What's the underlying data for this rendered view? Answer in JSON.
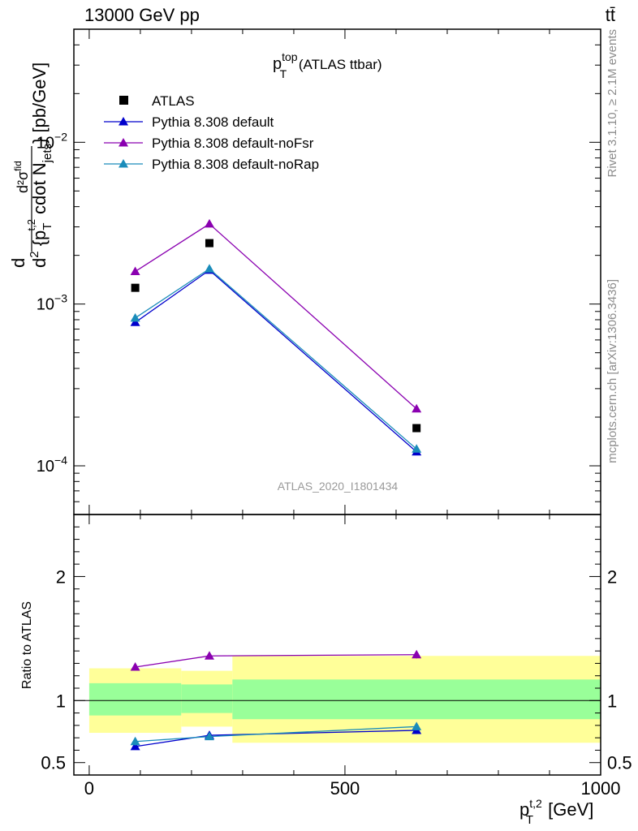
{
  "header": {
    "energy": "13000 GeV pp",
    "process": "tt̄"
  },
  "side_labels": {
    "rivet": "Rivet 3.1.10, ≥ 2.1M events",
    "mcplots": "mcplots.cern.ch [arXiv:1306.3436]"
  },
  "chart_data": [
    {
      "type": "scatter",
      "panel": "main",
      "title": "p_T^top (ATLAS ttbar)",
      "title_parts": {
        "main": "p",
        "sup": "top",
        "sub": "T",
        "rest": "(ATLAS ttbar)"
      },
      "analysis_tag": "ATLAS_2020_I1801434",
      "ylabel": "d d²σ^fid / d² {p_T^{t,2} cdot N_jets} [pb/GeV]",
      "ylabel_parts": {
        "numerator": "d",
        "inner_numerator": "d²σ",
        "inner_numerator_sup": "fid",
        "denominator": "d",
        "denominator_sup": "2",
        "denominator_text": "{p",
        "denominator_sub": "T",
        "denominator_sup2": "t,2",
        "denominator_text2": "cdot N",
        "denominator_sub2": "jets",
        "closing": "} [pb/GeV]"
      },
      "yscale": "log",
      "ylim": [
        5e-05,
        0.05
      ],
      "xlim": [
        -30,
        1000
      ],
      "y_ticks": [
        {
          "value": 0.0001,
          "base": "10",
          "exp": "−4"
        },
        {
          "value": 0.001,
          "base": "10",
          "exp": "−3"
        },
        {
          "value": 0.01,
          "base": "10",
          "exp": "−2"
        }
      ],
      "legend_position": "top-left",
      "series": [
        {
          "name": "ATLAS",
          "color": "#000000",
          "marker": "square",
          "line": false,
          "x": [
            90,
            235,
            640
          ],
          "y": [
            0.00126,
            0.00238,
            0.000171
          ]
        },
        {
          "name": "Pythia 8.308 default",
          "color": "#0000cc",
          "marker": "triangle",
          "line": true,
          "x": [
            90,
            235,
            640
          ],
          "y": [
            0.00077,
            0.00162,
            0.000122
          ]
        },
        {
          "name": "Pythia 8.308 default-noFsr",
          "color": "#8a00b0",
          "marker": "triangle",
          "line": true,
          "x": [
            90,
            235,
            640
          ],
          "y": [
            0.00159,
            0.00313,
            0.000225
          ]
        },
        {
          "name": "Pythia 8.308 default-noRap",
          "color": "#1a8cba",
          "marker": "triangle",
          "line": true,
          "x": [
            90,
            235,
            640
          ],
          "y": [
            0.00082,
            0.00165,
            0.000127
          ]
        }
      ]
    },
    {
      "type": "line",
      "panel": "ratio",
      "ylabel": "Ratio to ATLAS",
      "xlabel": "p_T^{t,2} [GeV]",
      "xlabel_parts": {
        "main": "p",
        "sub": "T",
        "sup": "t,2",
        "rest": "[GeV]"
      },
      "ylim": [
        0.4,
        2.5
      ],
      "xlim": [
        -30,
        1000
      ],
      "x_ticks": [
        {
          "value": 0,
          "label": "0"
        },
        {
          "value": 500,
          "label": "500"
        },
        {
          "value": 1000,
          "label": "1000"
        }
      ],
      "y_ticks": [
        {
          "value": 0.5,
          "label": "0.5"
        },
        {
          "value": 1,
          "label": "1"
        },
        {
          "value": 2,
          "label": "2"
        }
      ],
      "uncertainty_bands": [
        {
          "x_low": 0,
          "x_high": 180,
          "stat_low": 0.88,
          "stat_high": 1.14,
          "total_low": 0.74,
          "total_high": 1.26
        },
        {
          "x_low": 180,
          "x_high": 280,
          "stat_low": 0.9,
          "stat_high": 1.13,
          "total_low": 0.79,
          "total_high": 1.24
        },
        {
          "x_low": 280,
          "x_high": 1000,
          "stat_low": 0.85,
          "stat_high": 1.17,
          "total_low": 0.66,
          "total_high": 1.36
        }
      ],
      "band_colors": {
        "total": "#ffff99",
        "stat": "#99ff99"
      },
      "series": [
        {
          "name": "Pythia 8.308 default",
          "color": "#0000cc",
          "x": [
            90,
            235,
            640
          ],
          "y": [
            0.63,
            0.72,
            0.76
          ],
          "err": [
            0.02,
            0.03,
            0.03
          ]
        },
        {
          "name": "Pythia 8.308 default-noFsr",
          "color": "#8a00b0",
          "x": [
            90,
            235,
            640
          ],
          "y": [
            1.27,
            1.36,
            1.37
          ],
          "err": [
            0.02,
            0.02,
            0.03
          ]
        },
        {
          "name": "Pythia 8.308 default-noRap",
          "color": "#1a8cba",
          "x": [
            90,
            235,
            640
          ],
          "y": [
            0.67,
            0.71,
            0.79
          ],
          "err": [
            0.03,
            0.02,
            0.03
          ]
        }
      ]
    }
  ]
}
